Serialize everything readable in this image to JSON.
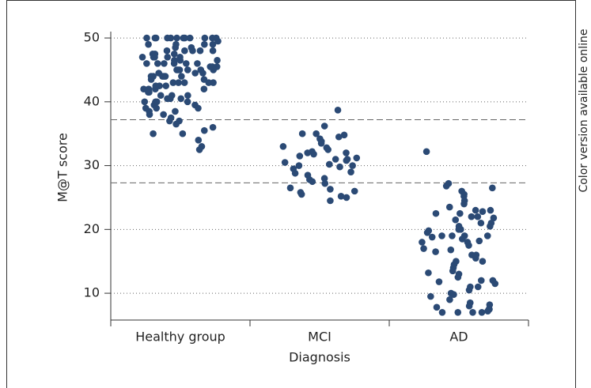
{
  "chart_data": {
    "type": "strip",
    "y_label": "M@T score",
    "x_label": "Diagnosis",
    "side_note": "Color version available online",
    "categories": [
      "Healthy group",
      "MCI",
      "AD"
    ],
    "color": "#2b4a75",
    "ylim": [
      5.8,
      51
    ],
    "yticks": [
      10,
      20,
      30,
      40,
      50
    ],
    "grid": true,
    "cutoff_lines": [
      37.2,
      27.3
    ],
    "values": [
      [
        50,
        50,
        50,
        50,
        50,
        50,
        50,
        50,
        50,
        50,
        50,
        50,
        49.5,
        49,
        49,
        49,
        48.5,
        48.5,
        48,
        48,
        48,
        48,
        47.5,
        47.5,
        47,
        47,
        47,
        47,
        46.5,
        46.5,
        46,
        46,
        46,
        46,
        46,
        45.5,
        45.5,
        45,
        45,
        45,
        45,
        45,
        44.5,
        44.5,
        44.5,
        44,
        44,
        44,
        44,
        44,
        43.5,
        43.5,
        43,
        43,
        43,
        43,
        42.5,
        42.5,
        42.5,
        42,
        42,
        42,
        42,
        41.5,
        41.5,
        41,
        41,
        41,
        40.5,
        40.5,
        40.5,
        40,
        40,
        40,
        40,
        39.5,
        39.5,
        39,
        39,
        39,
        38.5,
        38.5,
        38,
        38,
        37.5,
        37,
        37,
        36.5,
        36,
        35.5,
        35,
        35,
        34,
        33,
        32.5,
        48,
        47,
        46,
        45,
        44,
        43,
        49,
        47.5,
        46.5,
        45.5
      ],
      [
        38.7,
        36.2,
        35,
        35,
        34.8,
        34.5,
        34.2,
        33.8,
        33.5,
        33,
        32.8,
        32.5,
        32.2,
        32,
        32,
        31.8,
        31.5,
        31.2,
        31,
        31,
        30.8,
        30.5,
        30.2,
        30,
        30,
        29.8,
        29.5,
        29,
        28.8,
        28.5,
        28,
        27.8,
        27.5,
        27.2,
        26.5,
        26.3,
        26,
        25.8,
        25.5,
        25.2,
        25,
        24.5
      ],
      [
        32.2,
        27.2,
        26.8,
        26.5,
        26,
        25.5,
        25.2,
        24.5,
        24,
        23.5,
        23,
        22.8,
        22.5,
        22,
        22,
        21.8,
        21.5,
        21,
        20.5,
        20,
        20,
        19.8,
        19.5,
        19,
        19,
        19,
        18.8,
        18.5,
        18.2,
        18,
        17.5,
        17,
        16.8,
        16.5,
        16,
        15.5,
        15,
        15,
        14.5,
        14,
        13.5,
        13.2,
        13,
        12.5,
        12,
        11.8,
        11.5,
        11,
        11,
        10.5,
        10,
        9.8,
        9.5,
        9,
        8.5,
        8.2,
        8,
        7.8,
        7.5,
        7.5,
        7.2,
        7,
        7,
        7,
        7,
        22.5,
        19,
        23,
        21,
        18,
        16,
        12,
        20.5
      ]
    ]
  }
}
